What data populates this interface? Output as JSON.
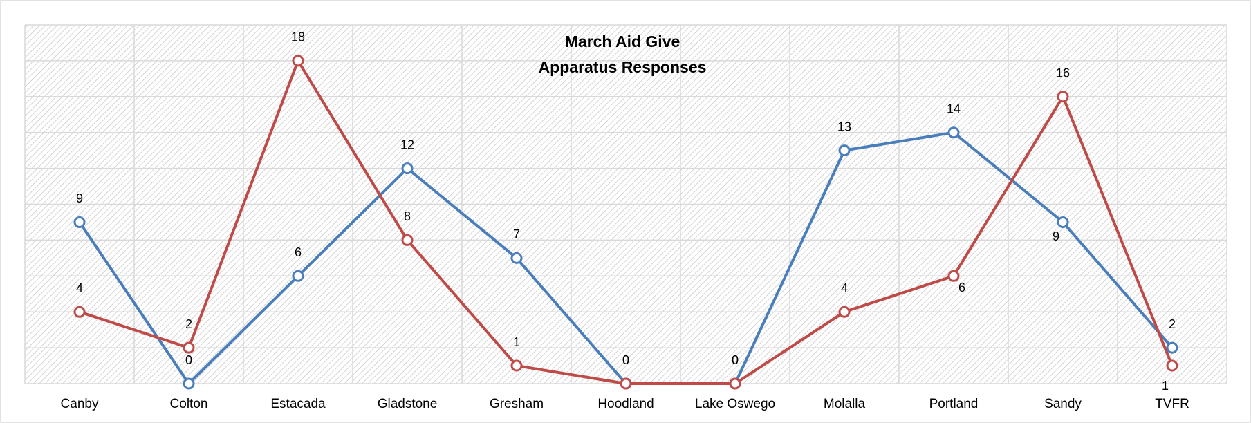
{
  "chart_data": {
    "type": "line",
    "title": "March Aid Give",
    "subtitle": "Apparatus Responses",
    "categories": [
      "Canby",
      "Colton",
      "Estacada",
      "Gladstone",
      "Gresham",
      "Hoodland",
      "Lake Oswego",
      "Molalla",
      "Portland",
      "Sandy",
      "TVFR"
    ],
    "series": [
      {
        "color": "#4a7ebb",
        "values": [
          9,
          0,
          6,
          12,
          7,
          0,
          0,
          13,
          14,
          9,
          2
        ]
      },
      {
        "color": "#be4b48",
        "values": [
          4,
          2,
          18,
          8,
          1,
          0,
          0,
          4,
          6,
          16,
          1
        ]
      }
    ],
    "ylim": [
      0,
      20
    ],
    "yticks": [
      0,
      2,
      4,
      6,
      8,
      10,
      12,
      14,
      16,
      18,
      20
    ],
    "grid": true
  }
}
